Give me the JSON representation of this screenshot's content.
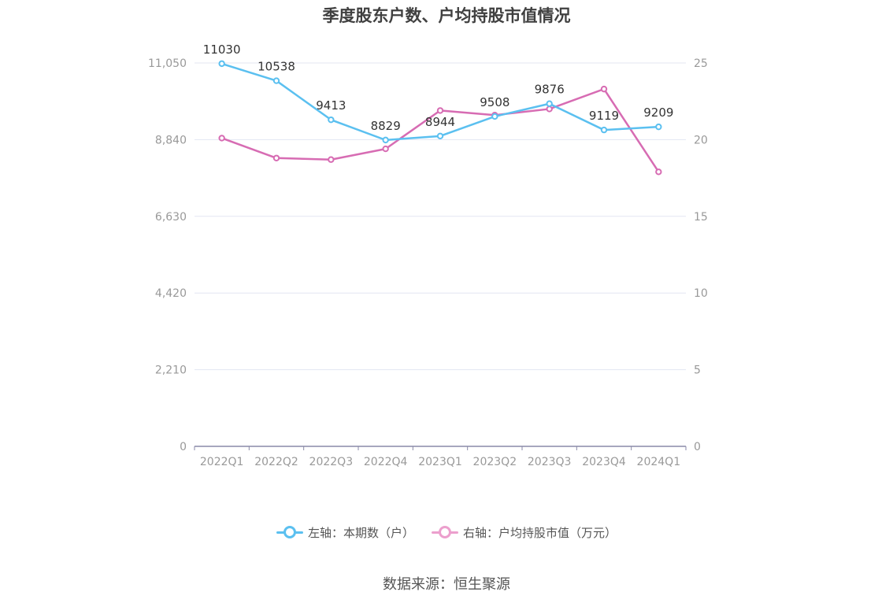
{
  "title": "季度股东户数、户均持股市值情况",
  "source": "数据来源：恒生聚源",
  "colors": {
    "left_series": "#5bc0f0",
    "right_series": "#d76cb3",
    "grid": "#e3e6f2",
    "axis_text": "#999999",
    "label_text": "#333333"
  },
  "chart_data": {
    "type": "line",
    "categories": [
      "2022Q1",
      "2022Q2",
      "2022Q3",
      "2022Q4",
      "2023Q1",
      "2023Q2",
      "2023Q3",
      "2023Q4",
      "2024Q1"
    ],
    "y_left": {
      "ticks": [
        0,
        2210,
        4420,
        6630,
        8840,
        11050
      ],
      "tick_labels": [
        "0",
        "2,210",
        "4,420",
        "6,630",
        "8,840",
        "11,050"
      ],
      "ylim": [
        0,
        11050
      ]
    },
    "y_right": {
      "ticks": [
        0,
        5,
        10,
        15,
        20,
        25
      ],
      "tick_labels": [
        "0",
        "5",
        "10",
        "15",
        "20",
        "25"
      ],
      "ylim": [
        0,
        25
      ]
    },
    "grid": true,
    "legend_position": "bottom",
    "series": [
      {
        "name": "左轴：本期数（户）",
        "axis": "left",
        "values": [
          11030,
          10538,
          9413,
          8829,
          8944,
          9508,
          9876,
          9119,
          9209
        ],
        "labels": [
          "11030",
          "10538",
          "9413",
          "8829",
          "8944",
          "9508",
          "9876",
          "9119",
          "9209"
        ]
      },
      {
        "name": "右轴：户均持股市值（万元）",
        "axis": "right",
        "values": [
          20.1,
          18.8,
          18.7,
          19.4,
          21.9,
          21.6,
          22.0,
          23.3,
          17.9
        ]
      }
    ]
  }
}
